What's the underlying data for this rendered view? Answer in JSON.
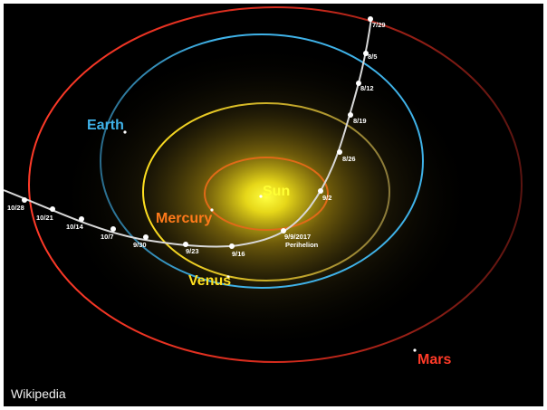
{
  "labels": {
    "sun": "Sun",
    "mercury": "Mercury",
    "venus": "Venus",
    "earth": "Earth",
    "mars": "Mars",
    "perihelion_date": "9/9/2017",
    "perihelion": "Perihelion",
    "credit": "Wikipedia"
  },
  "colors": {
    "sun": "#ffff33",
    "mercury": "#ff7a1a",
    "venus": "#ffe020",
    "earth": "#3fb2e8",
    "mars": "#ff3a28",
    "trajectory": "#d8d8d8"
  },
  "dates": [
    "7/29",
    "8/5",
    "8/12",
    "8/19",
    "8/26",
    "9/2",
    "9/16",
    "9/23",
    "9/30",
    "10/7",
    "10/14",
    "10/21",
    "10/28"
  ]
}
